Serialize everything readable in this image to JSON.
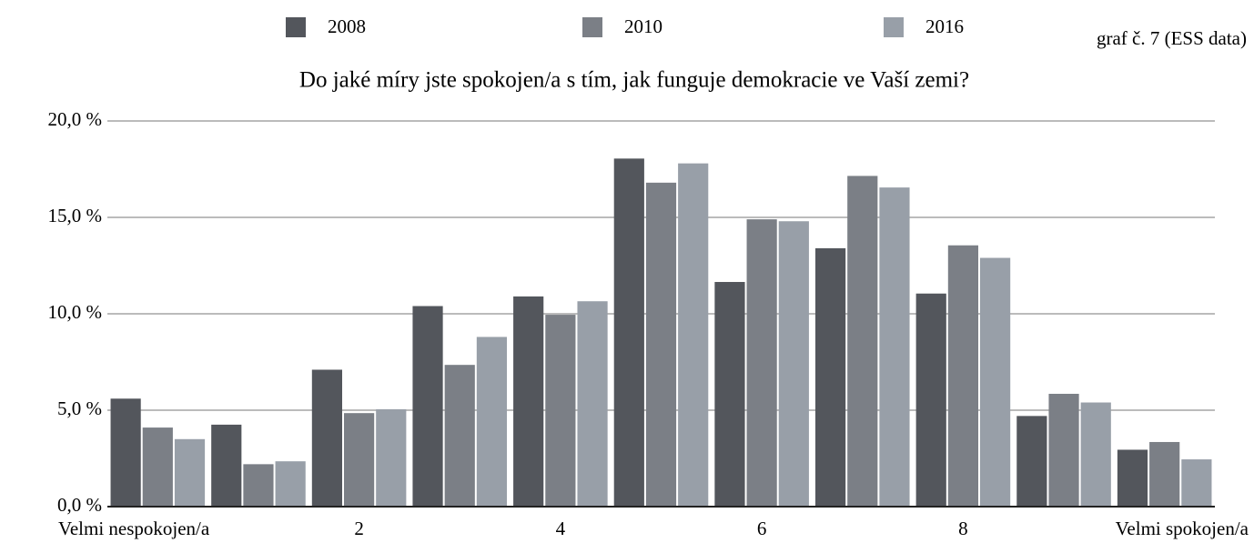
{
  "chart_data": {
    "type": "bar",
    "title": "Do jaké míry jste spokojen/a s tím, jak funguje demokracie ve Vaší zemi?",
    "annotation": "graf č. 7 (ESS data)",
    "categories": [
      "Velmi nespokojen/a",
      null,
      "2",
      null,
      "4",
      null,
      "6",
      null,
      "8",
      null,
      "Velmi spokojen/a"
    ],
    "series": [
      {
        "name": "2008",
        "color": "#53565c",
        "values": [
          5.6,
          4.25,
          7.1,
          10.4,
          10.9,
          18.05,
          11.65,
          13.4,
          11.05,
          4.7,
          2.95
        ]
      },
      {
        "name": "2010",
        "color": "#7b7f86",
        "values": [
          4.1,
          2.2,
          4.85,
          7.35,
          9.95,
          16.8,
          14.9,
          17.15,
          13.55,
          5.85,
          3.35
        ]
      },
      {
        "name": "2016",
        "color": "#989fa8",
        "values": [
          3.5,
          2.35,
          5.05,
          8.8,
          10.65,
          17.8,
          14.8,
          16.55,
          12.9,
          5.4,
          2.45
        ]
      }
    ],
    "ylim": [
      0,
      20
    ],
    "yticks": [
      {
        "value": 0,
        "label": "0,0 %"
      },
      {
        "value": 5,
        "label": "5,0 %"
      },
      {
        "value": 10,
        "label": "10,0 %"
      },
      {
        "value": 15,
        "label": "15,0 %"
      },
      {
        "value": 20,
        "label": "20,0 %"
      }
    ],
    "grid": true,
    "legend": "top"
  }
}
